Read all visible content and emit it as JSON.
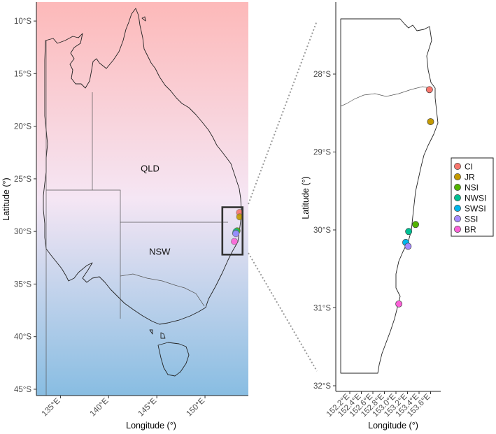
{
  "main_map": {
    "xlabel": "Longitude (°)",
    "ylabel": "Latitude (°)",
    "x_ticks": [
      {
        "value": 135,
        "label": "135°E"
      },
      {
        "value": 140,
        "label": "140°E"
      },
      {
        "value": 145,
        "label": "145°E"
      },
      {
        "value": 150,
        "label": "150°E"
      }
    ],
    "y_ticks": [
      {
        "value": -10,
        "label": "10°S"
      },
      {
        "value": -15,
        "label": "15°S"
      },
      {
        "value": -20,
        "label": "20°S"
      },
      {
        "value": -25,
        "label": "25°S"
      },
      {
        "value": -30,
        "label": "30°S"
      },
      {
        "value": -35,
        "label": "35°S"
      },
      {
        "value": -40,
        "label": "40°S"
      },
      {
        "value": -45,
        "label": "45°S"
      }
    ],
    "xlim": [
      132.5,
      154.5
    ],
    "ylim": [
      -45.6,
      -8.2
    ],
    "background_gradient": {
      "top": "#fdb9b9",
      "middle": "#f5e6f4",
      "bottom": "#88bde2"
    },
    "regions": [
      {
        "label": "QLD",
        "lon": 144.3,
        "lat": -24.3
      },
      {
        "label": "NSW",
        "lon": 145.3,
        "lat": -32.2
      }
    ],
    "inset_box": {
      "lon": [
        151.8,
        153.9
      ],
      "lat": [
        -27.7,
        -32.2
      ]
    }
  },
  "inset_map": {
    "xlabel": "Longitude (°)",
    "ylabel": "Latitude (°)",
    "x_ticks": [
      {
        "value": 152.2,
        "label": "152.2°E"
      },
      {
        "value": 152.4,
        "label": "152.4°E"
      },
      {
        "value": 152.6,
        "label": "152.6°E"
      },
      {
        "value": 152.8,
        "label": "152.8°E"
      },
      {
        "value": 153.0,
        "label": "153.0°E"
      },
      {
        "value": 153.2,
        "label": "153.2°E"
      },
      {
        "value": 153.4,
        "label": "153.4°E"
      },
      {
        "value": 153.6,
        "label": "153.6°E"
      }
    ],
    "y_ticks": [
      {
        "value": -28,
        "label": "28°S"
      },
      {
        "value": -29,
        "label": "29°S"
      },
      {
        "value": -30,
        "label": "30°S"
      },
      {
        "value": -31,
        "label": "31°S"
      },
      {
        "value": -32,
        "label": "32°S"
      }
    ],
    "xlim": [
      152.2,
      153.7
    ],
    "ylim": [
      -32.0,
      -27.3
    ]
  },
  "sites": [
    {
      "code": "CI",
      "color": "#f8766d",
      "lon": 153.58,
      "lat": -28.2
    },
    {
      "code": "JR",
      "color": "#c49a00",
      "lon": 153.6,
      "lat": -28.61
    },
    {
      "code": "NSI",
      "color": "#53b400",
      "lon": 153.34,
      "lat": -29.93
    },
    {
      "code": "NWSI",
      "color": "#00c094",
      "lon": 153.22,
      "lat": -30.02
    },
    {
      "code": "SWSI",
      "color": "#00b6eb",
      "lon": 153.17,
      "lat": -30.16
    },
    {
      "code": "SSI",
      "color": "#a58aff",
      "lon": 153.21,
      "lat": -30.21
    },
    {
      "code": "BR",
      "color": "#fb61d7",
      "lon": 153.05,
      "lat": -30.95
    }
  ]
}
